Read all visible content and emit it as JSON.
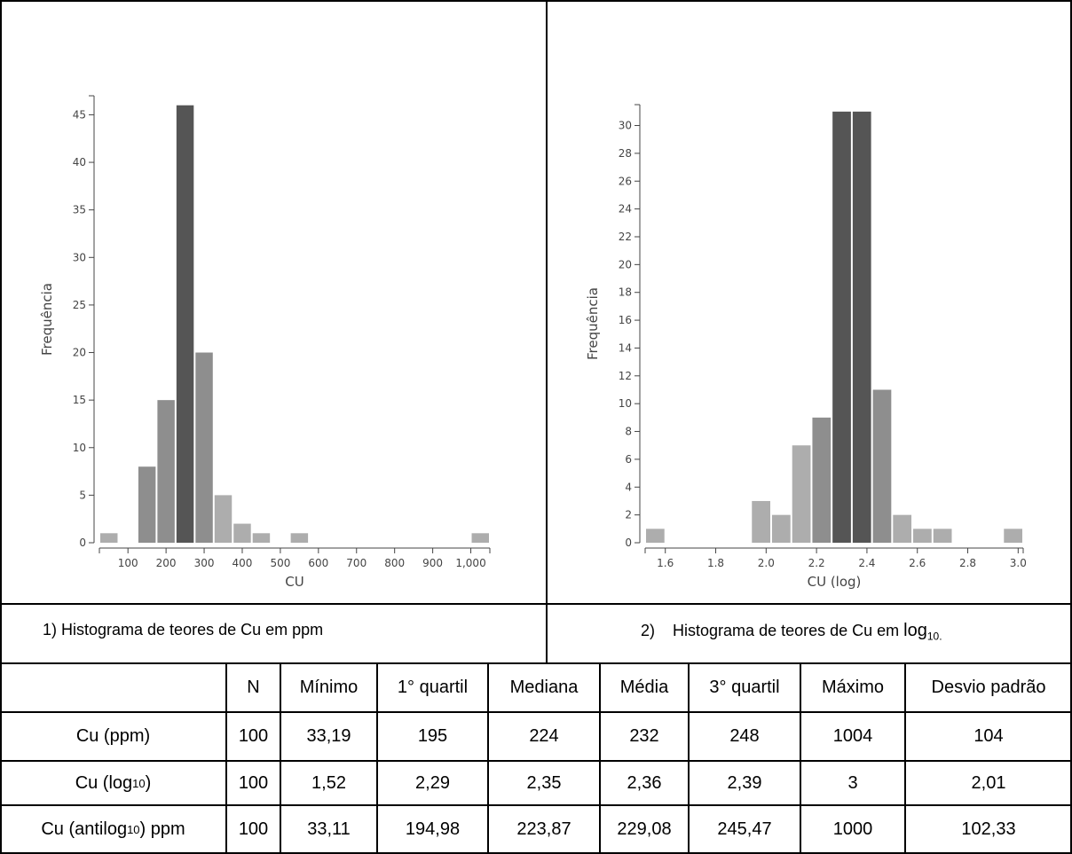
{
  "chart_data": [
    {
      "type": "bar",
      "xlabel": "CU",
      "ylabel": "Frequência",
      "xlim": [
        25,
        1050
      ],
      "ylim": [
        0,
        47
      ],
      "x_ticks": [
        "100",
        "200",
        "300",
        "400",
        "500",
        "600",
        "700",
        "800",
        "900",
        "1,000"
      ],
      "y_ticks": [
        "0",
        "5",
        "10",
        "15",
        "20",
        "25",
        "30",
        "35",
        "40",
        "45"
      ],
      "bins": [
        {
          "x0": 25,
          "x1": 75,
          "value": 1
        },
        {
          "x0": 75,
          "x1": 125,
          "value": 0
        },
        {
          "x0": 125,
          "x1": 175,
          "value": 8
        },
        {
          "x0": 175,
          "x1": 225,
          "value": 15
        },
        {
          "x0": 225,
          "x1": 275,
          "value": 46
        },
        {
          "x0": 275,
          "x1": 325,
          "value": 20
        },
        {
          "x0": 325,
          "x1": 375,
          "value": 5
        },
        {
          "x0": 375,
          "x1": 425,
          "value": 2
        },
        {
          "x0": 425,
          "x1": 475,
          "value": 1
        },
        {
          "x0": 525,
          "x1": 575,
          "value": 1
        },
        {
          "x0": 1000,
          "x1": 1050,
          "value": 1
        }
      ]
    },
    {
      "type": "bar",
      "xlabel": "CU (log)",
      "ylabel": "Frequência",
      "xlim": [
        1.52,
        3.02
      ],
      "ylim": [
        0,
        31.5
      ],
      "x_ticks": [
        "1.6",
        "1.8",
        "2.0",
        "2.2",
        "2.4",
        "2.6",
        "2.8",
        "3.0"
      ],
      "y_ticks": [
        "0",
        "2",
        "4",
        "6",
        "8",
        "10",
        "12",
        "14",
        "16",
        "18",
        "20",
        "22",
        "24",
        "26",
        "28",
        "30"
      ],
      "bins": [
        {
          "x0": 1.52,
          "x1": 1.6,
          "value": 1
        },
        {
          "x0": 1.94,
          "x1": 2.02,
          "value": 3
        },
        {
          "x0": 2.02,
          "x1": 2.1,
          "value": 2
        },
        {
          "x0": 2.1,
          "x1": 2.18,
          "value": 7
        },
        {
          "x0": 2.18,
          "x1": 2.26,
          "value": 9
        },
        {
          "x0": 2.26,
          "x1": 2.34,
          "value": 31
        },
        {
          "x0": 2.34,
          "x1": 2.42,
          "value": 31
        },
        {
          "x0": 2.42,
          "x1": 2.5,
          "value": 11
        },
        {
          "x0": 2.5,
          "x1": 2.58,
          "value": 2
        },
        {
          "x0": 2.58,
          "x1": 2.66,
          "value": 1
        },
        {
          "x0": 2.66,
          "x1": 2.74,
          "value": 1
        },
        {
          "x0": 2.94,
          "x1": 3.02,
          "value": 1
        }
      ]
    }
  ],
  "captions": {
    "left": "1)    Histograma de teores de Cu em ppm",
    "right_num": "2)",
    "right_text": "Histograma de teores de Cu em ",
    "right_log": "log",
    "right_sub": "10."
  },
  "table": {
    "headers": [
      "",
      "N",
      "Mínimo",
      "1° quartil",
      "Mediana",
      "Média",
      "3° quartil",
      "Máximo",
      "Desvio padrão"
    ],
    "rows": [
      {
        "label": "Cu (ppm)",
        "values": [
          "100",
          "33,19",
          "195",
          "224",
          "232",
          "248",
          "1004",
          "104"
        ]
      },
      {
        "label_pre": "Cu (log",
        "label_sub": "10",
        "label_post": ")",
        "values": [
          "100",
          "1,52",
          "2,29",
          "2,35",
          "2,36",
          "2,39",
          "3",
          "2,01"
        ]
      },
      {
        "label_pre": "Cu (antilog",
        "label_sub": "10",
        "label_post": ") ppm",
        "values": [
          "100",
          "33,11",
          "194,98",
          "223,87",
          "229,08",
          "245,47",
          "1000",
          "102,33"
        ]
      }
    ]
  },
  "colors": {
    "light": "#adadad",
    "mid": "#8e8e8e",
    "dark": "#555555",
    "axis": "#444444"
  }
}
